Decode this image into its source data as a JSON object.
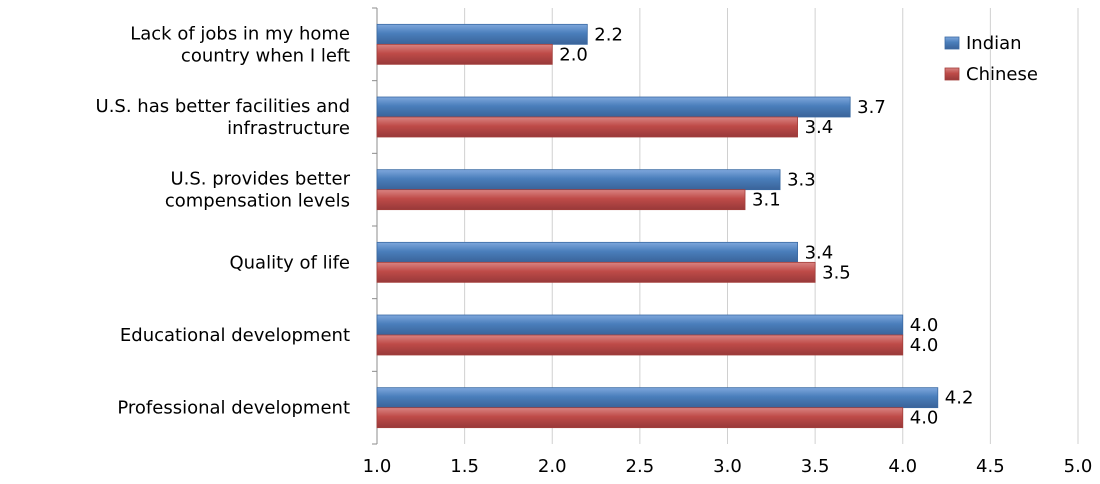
{
  "chart_data": {
    "type": "bar",
    "orientation": "horizontal",
    "categories": [
      [
        "Lack of jobs in my home",
        "country when I left"
      ],
      [
        "U.S. has better facilities and",
        "infrastructure"
      ],
      [
        "U.S. provides better",
        "compensation levels"
      ],
      [
        "Quality of life"
      ],
      [
        "Educational development"
      ],
      [
        "Professional development"
      ]
    ],
    "series": [
      {
        "name": "Indian",
        "color": "#4a7ebb",
        "values": [
          2.2,
          3.7,
          3.3,
          3.4,
          4.0,
          4.2
        ],
        "labels": [
          "2.2",
          "3.7",
          "3.3",
          "3.4",
          "4.0",
          "4.2"
        ]
      },
      {
        "name": "Chinese",
        "color": "#be4b48",
        "values": [
          2.0,
          3.4,
          3.1,
          3.5,
          4.0,
          4.0
        ],
        "labels": [
          "2.0",
          "3.4",
          "3.1",
          "3.5",
          "4.0",
          "4.0"
        ]
      }
    ],
    "xlim": [
      1.0,
      5.0
    ],
    "xticks": [
      "1.0",
      "1.5",
      "2.0",
      "2.5",
      "3.0",
      "3.5",
      "4.0",
      "4.5",
      "5.0"
    ],
    "grid": true,
    "legend_position": "top-right",
    "title": "",
    "xlabel": "",
    "ylabel": ""
  }
}
